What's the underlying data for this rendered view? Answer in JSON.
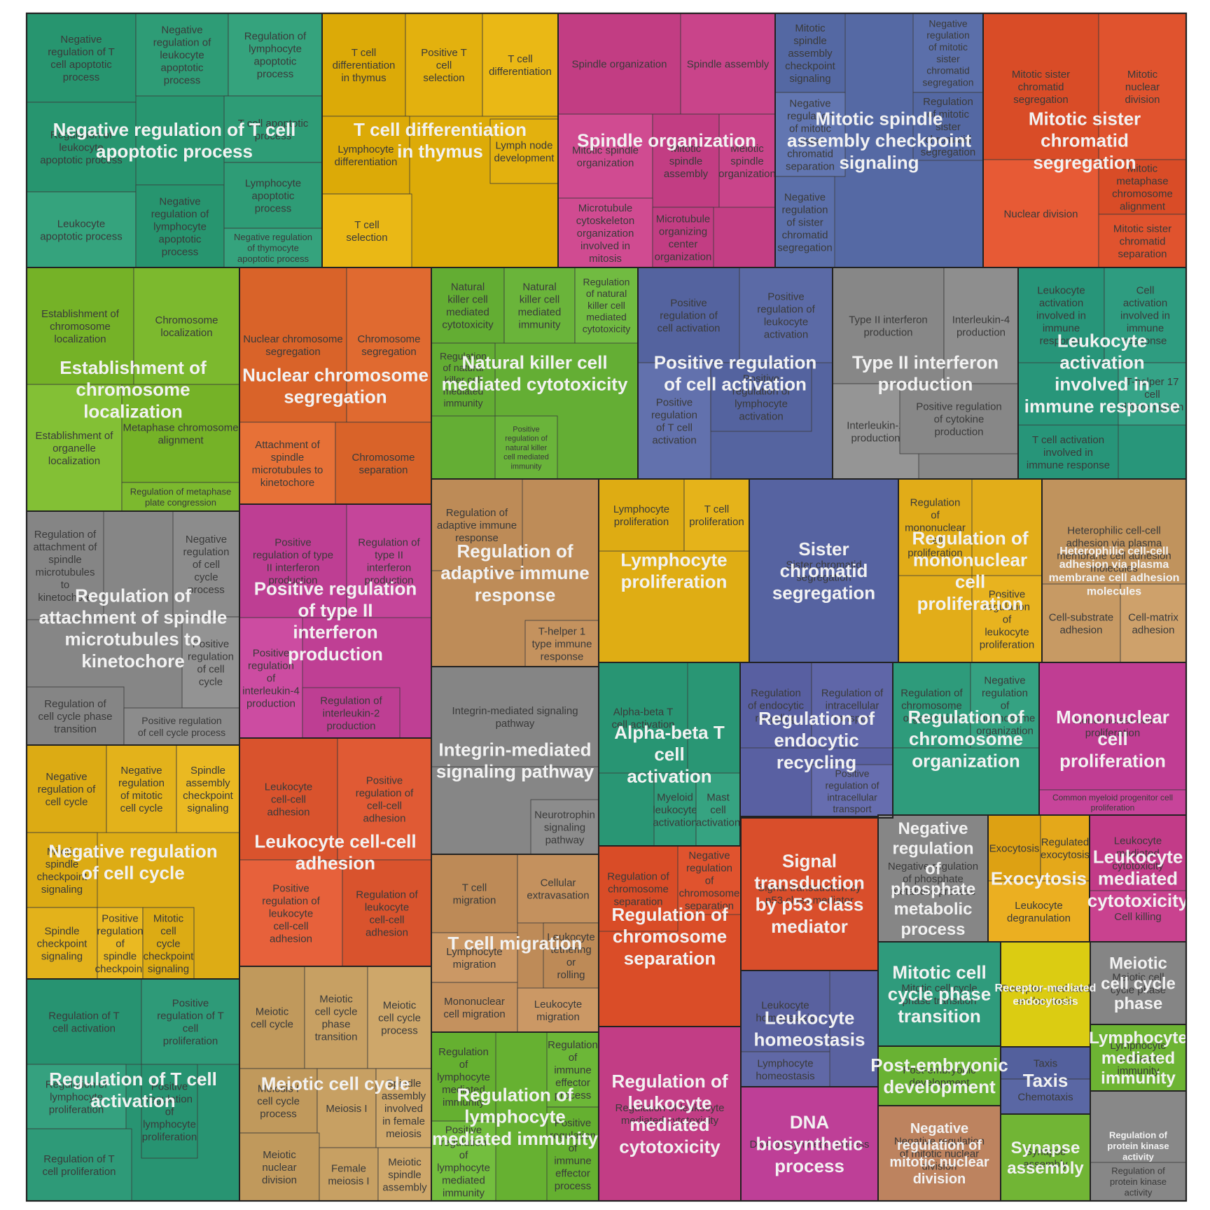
{
  "chart_data": {
    "type": "treemap",
    "title": "",
    "groups": [
      {
        "label": "Negative regulation of T cell apoptotic process",
        "color": "#2e9c76",
        "leaves": [
          {
            "label": "Negative regulation of T cell apoptotic process"
          },
          {
            "label": "Negative regulation of leukocyte apoptotic process"
          },
          {
            "label": "Regulation of lymphocyte apoptotic process"
          },
          {
            "label": "Regulation of leukocyte apoptotic process"
          },
          {
            "label": "T cell apoptotic process"
          },
          {
            "label": "Leukocyte apoptotic process"
          },
          {
            "label": "Negative regulation of lymphocyte apoptotic process"
          },
          {
            "label": "Lymphocyte apoptotic process"
          },
          {
            "label": "Negative regulation of thymocyte apoptotic process"
          }
        ]
      },
      {
        "label": "T cell differentiation in thymus",
        "color": "#e3b10e",
        "leaves": [
          {
            "label": "T cell differentiation in thymus"
          },
          {
            "label": "Positive T cell selection"
          },
          {
            "label": "T cell differentiation"
          },
          {
            "label": "Lymphocyte differentiation"
          },
          {
            "label": "Lymph node development"
          },
          {
            "label": "T cell selection"
          }
        ]
      },
      {
        "label": "Spindle organization",
        "color": "#c9448a",
        "leaves": [
          {
            "label": "Spindle organization"
          },
          {
            "label": "Spindle assembly"
          },
          {
            "label": "Mitotic spindle organization"
          },
          {
            "label": "Mitotic spindle assembly"
          },
          {
            "label": "Meiotic spindle organization"
          },
          {
            "label": "Microtubule cytoskeleton organization involved in mitosis"
          },
          {
            "label": "Microtubule organizing center organization"
          }
        ]
      },
      {
        "label": "Mitotic spindle assembly checkpoint signaling",
        "color": "#5b6faa",
        "leaves": [
          {
            "label": "Mitotic spindle assembly checkpoint signaling"
          },
          {
            "label": "Negative regulation of mitotic sister chromatid segregation"
          },
          {
            "label": "Negative regulation of mitotic sister chromatid separation"
          },
          {
            "label": "Regulation of mitotic sister chromatid segregation"
          },
          {
            "label": "Negative regulation of sister chromatid segregation"
          }
        ]
      },
      {
        "label": "Mitotic sister chromatid segregation",
        "color": "#e0532e",
        "leaves": [
          {
            "label": "Mitotic sister chromatid segregation"
          },
          {
            "label": "Mitotic nuclear division"
          },
          {
            "label": "Nuclear division"
          },
          {
            "label": "Mitotic metaphase chromosome alignment"
          },
          {
            "label": "Mitotic sister chromatid separation"
          }
        ]
      },
      {
        "label": "Establishment of chromosome localization",
        "color": "#7cb92e",
        "leaves": [
          {
            "label": "Establishment of chromosome localization"
          },
          {
            "label": "Chromosome localization"
          },
          {
            "label": "Establishment of organelle localization"
          },
          {
            "label": "Metaphase chromosome alignment"
          },
          {
            "label": "Regulation of metaphase plate congression"
          }
        ]
      },
      {
        "label": "Nuclear chromosome segregation",
        "color": "#e06a30",
        "leaves": [
          {
            "label": "Nuclear chromosome segregation"
          },
          {
            "label": "Chromosome segregation"
          },
          {
            "label": "Attachment of spindle microtubules to kinetochore"
          },
          {
            "label": "Chromosome separation"
          }
        ]
      },
      {
        "label": "Natural killer cell mediated cytotoxicity",
        "color": "#6ab43a",
        "leaves": [
          {
            "label": "Natural killer cell mediated cytotoxicity"
          },
          {
            "label": "Natural killer cell mediated immunity"
          },
          {
            "label": "Regulation of natural killer cell mediated cytotoxicity"
          },
          {
            "label": "Regulation of natural killer cell mediated immunity"
          },
          {
            "label": "Positive regulation of natural killer cell mediated immunity"
          }
        ]
      },
      {
        "label": "Positive regulation of cell activation",
        "color": "#5b6aa6",
        "leaves": [
          {
            "label": "Positive regulation of cell activation"
          },
          {
            "label": "Positive regulation of leukocyte activation"
          },
          {
            "label": "Positive regulation of T cell activation"
          },
          {
            "label": "Positive regulation of lymphocyte activation"
          }
        ]
      },
      {
        "label": "Type II interferon production",
        "color": "#8e8e8e",
        "leaves": [
          {
            "label": "Type II interferon production"
          },
          {
            "label": "Interleukin-4 production"
          },
          {
            "label": "Interleukin-2 production"
          },
          {
            "label": "Positive regulation of cytokine production"
          }
        ]
      },
      {
        "label": "Leukocyte activation involved in immune response",
        "color": "#2e9c80",
        "leaves": [
          {
            "label": "Leukocyte activation involved in immune response"
          },
          {
            "label": "Cell activation involved in immune response"
          },
          {
            "label": "T-helper 17 cell differentiation"
          },
          {
            "label": "T cell activation involved in immune response"
          }
        ]
      },
      {
        "label": "Regulation of attachment of spindle microtubules to kinetochore",
        "color": "#8c8c8c",
        "leaves": [
          {
            "label": "Regulation of attachment of spindle microtubules to kinetochore"
          },
          {
            "label": "Negative regulation of cell cycle process"
          },
          {
            "label": "Positive regulation of cell cycle"
          },
          {
            "label": "Regulation of cell cycle phase transition"
          },
          {
            "label": "Positive regulation of cell cycle process"
          }
        ]
      },
      {
        "label": "Positive regulation of type II interferon production",
        "color": "#c5459a",
        "leaves": [
          {
            "label": "Positive regulation of type II interferon production"
          },
          {
            "label": "Regulation of type II interferon production"
          },
          {
            "label": "Positive regulation of interleukin-4 production"
          },
          {
            "label": "Regulation of interleukin-2 production"
          }
        ]
      },
      {
        "label": "Regulation of adaptive immune response",
        "color": "#c4925e",
        "leaves": [
          {
            "label": "Regulation of adaptive immune response"
          },
          {
            "label": "T-helper 1 type immune response"
          }
        ]
      },
      {
        "label": "Lymphocyte proliferation",
        "color": "#e5b31a",
        "leaves": [
          {
            "label": "Lymphocyte proliferation"
          },
          {
            "label": "T cell proliferation"
          }
        ]
      },
      {
        "label": "Sister chromatid segregation",
        "color": "#5d6aa8",
        "leaves": [
          {
            "label": "Sister chromatid segregation"
          }
        ]
      },
      {
        "label": "Regulation of mononuclear cell proliferation",
        "color": "#e8b31f",
        "leaves": [
          {
            "label": "Regulation of mononuclear cell proliferation"
          },
          {
            "label": "Positive regulation of leukocyte proliferation"
          }
        ]
      },
      {
        "label": "Heterophilic cell-cell adhesion via plasma membrane cell adhesion molecules",
        "color": "#c79a64",
        "leaves": [
          {
            "label": "Heterophilic cell-cell adhesion via plasma membrane cell adhesion molecules"
          },
          {
            "label": "Cell-substrate adhesion"
          },
          {
            "label": "Cell-matrix adhesion"
          }
        ]
      },
      {
        "label": "Integrin-mediated signaling pathway",
        "color": "#8c8c8c",
        "leaves": [
          {
            "label": "Integrin-mediated signaling pathway"
          },
          {
            "label": "Neurotrophin signaling pathway"
          }
        ]
      },
      {
        "label": "Alpha-beta T cell activation",
        "color": "#2f9c7a",
        "leaves": [
          {
            "label": "Alpha-beta T cell activation"
          },
          {
            "label": "Myeloid leukocyte activation"
          },
          {
            "label": "Mast cell activation"
          }
        ]
      },
      {
        "label": "Regulation of endocytic recycling",
        "color": "#5f66a8",
        "leaves": [
          {
            "label": "Regulation of endocytic recycling"
          },
          {
            "label": "Regulation of intracellular transport"
          },
          {
            "label": "Positive regulation of intracellular transport"
          }
        ]
      },
      {
        "label": "Regulation of chromosome organization",
        "color": "#35a282",
        "leaves": [
          {
            "label": "Regulation of chromosome organization"
          },
          {
            "label": "Negative regulation of chromosome organization"
          }
        ]
      },
      {
        "label": "Mononuclear cell proliferation",
        "color": "#c7449a",
        "leaves": [
          {
            "label": "Mononuclear cell proliferation"
          },
          {
            "label": "Common myeloid progenitor cell proliferation"
          }
        ]
      },
      {
        "label": "Negative regulation of cell cycle",
        "color": "#e3b21b",
        "leaves": [
          {
            "label": "Negative regulation of cell cycle"
          },
          {
            "label": "Negative regulation of mitotic cell cycle"
          },
          {
            "label": "Spindle assembly checkpoint signaling"
          },
          {
            "label": "Mitotic spindle checkpoint signaling"
          },
          {
            "label": "Spindle checkpoint signaling"
          },
          {
            "label": "Positive regulation of spindle checkpoint"
          },
          {
            "label": "Mitotic cell cycle checkpoint signaling"
          }
        ]
      },
      {
        "label": "Leukocyte cell-cell adhesion",
        "color": "#e05a34",
        "leaves": [
          {
            "label": "Leukocyte cell-cell adhesion"
          },
          {
            "label": "Positive regulation of cell-cell adhesion"
          },
          {
            "label": "Positive regulation of leukocyte cell-cell adhesion"
          },
          {
            "label": "Regulation of leukocyte cell-cell adhesion"
          }
        ]
      },
      {
        "label": "T cell migration",
        "color": "#c4915e",
        "leaves": [
          {
            "label": "T cell migration"
          },
          {
            "label": "Cellular extravasation"
          },
          {
            "label": "Lymphocyte migration"
          },
          {
            "label": "Leukocyte tethering or rolling"
          },
          {
            "label": "Mononuclear cell migration"
          },
          {
            "label": "Leukocyte migration"
          }
        ]
      },
      {
        "label": "Regulation of chromosome separation",
        "color": "#e0532e",
        "leaves": [
          {
            "label": "Regulation of chromosome separation"
          },
          {
            "label": "Negative regulation of chromosome separation"
          }
        ]
      },
      {
        "label": "Signal transduction by p53 class mediator",
        "color": "#e05532",
        "leaves": [
          {
            "label": "Signal transduction by p53 class mediator"
          }
        ]
      },
      {
        "label": "Negative regulation of phosphate metabolic process",
        "color": "#8d8d8d",
        "leaves": [
          {
            "label": "Negative regulation of phosphate metabolic process"
          }
        ]
      },
      {
        "label": "Exocytosis",
        "color": "#e4a81a",
        "leaves": [
          {
            "label": "Exocytosis"
          },
          {
            "label": "Regulated exocytosis"
          },
          {
            "label": "Leukocyte degranulation"
          }
        ]
      },
      {
        "label": "Leukocyte mediated cytotoxicity",
        "color": "#c9428f",
        "leaves": [
          {
            "label": "Leukocyte mediated cytotoxicity"
          },
          {
            "label": "Cell killing"
          }
        ]
      },
      {
        "label": "Regulation of T cell activation",
        "color": "#2e9a78",
        "leaves": [
          {
            "label": "Regulation of T cell activation"
          },
          {
            "label": "Positive regulation of T cell proliferation"
          },
          {
            "label": "Regulation of lymphocyte proliferation"
          },
          {
            "label": "Positive regulation of lymphocyte proliferation"
          },
          {
            "label": "Regulation of T cell proliferation"
          }
        ]
      },
      {
        "label": "Meiotic cell cycle",
        "color": "#c7a063",
        "leaves": [
          {
            "label": "Meiotic cell cycle"
          },
          {
            "label": "Meiotic cell cycle phase transition"
          },
          {
            "label": "Meiotic cell cycle process"
          },
          {
            "label": "Meiosis I cell cycle process"
          },
          {
            "label": "Meiosis I"
          },
          {
            "label": "Spindle assembly involved in female meiosis"
          },
          {
            "label": "Meiotic nuclear division"
          },
          {
            "label": "Female meiosis I"
          },
          {
            "label": "Meiotic spindle assembly"
          }
        ]
      },
      {
        "label": "Regulation of lymphocyte mediated immunity",
        "color": "#6cb737",
        "leaves": [
          {
            "label": "Regulation of lymphocyte mediated immunity"
          },
          {
            "label": "Regulation of immune effector process"
          },
          {
            "label": "Positive regulation of lymphocyte mediated immunity"
          },
          {
            "label": "Positive regulation of immune effector process"
          }
        ]
      },
      {
        "label": "Regulation of leukocyte mediated cytotoxicity",
        "color": "#c9448c",
        "leaves": [
          {
            "label": "Regulation of leukocyte mediated cytotoxicity"
          }
        ]
      },
      {
        "label": "Leukocyte homeostasis",
        "color": "#6068a6",
        "leaves": [
          {
            "label": "Leukocyte homeostasis"
          },
          {
            "label": "Lymphocyte homeostasis"
          }
        ]
      },
      {
        "label": "DNA biosynthetic process",
        "color": "#c5469e",
        "leaves": [
          {
            "label": "DNA biosynthetic process"
          }
        ]
      },
      {
        "label": "Mitotic cell cycle phase transition",
        "color": "#36a283",
        "leaves": [
          {
            "label": "Mitotic cell cycle phase transition"
          }
        ]
      },
      {
        "label": "Post-embryonic development",
        "color": "#70b93a",
        "leaves": [
          {
            "label": "Post-embryonic development"
          }
        ]
      },
      {
        "label": "Negative regulation of mitotic nuclear division",
        "color": "#c48a66",
        "leaves": [
          {
            "label": "Negative regulation of mitotic nuclear division"
          }
        ]
      },
      {
        "label": "Receptor-mediated endocytosis",
        "color": "#e2d319",
        "leaves": [
          {
            "label": "Receptor-mediated endocytosis"
          }
        ]
      },
      {
        "label": "Meiotic cell cycle phase",
        "color": "#8c8c8c",
        "leaves": [
          {
            "label": "Meiotic cell cycle phase"
          }
        ]
      },
      {
        "label": "Taxis",
        "color": "#5a67a4",
        "leaves": [
          {
            "label": "Taxis"
          },
          {
            "label": "Chemotaxis"
          }
        ]
      },
      {
        "label": "Lymphocyte mediated immunity",
        "color": "#74bb3a",
        "leaves": [
          {
            "label": "Lymphocyte mediated immunity"
          }
        ]
      },
      {
        "label": "Synapse assembly",
        "color": "#78bc3c",
        "leaves": [
          {
            "label": "Synapse assembly"
          }
        ]
      },
      {
        "label": "Regulation of protein kinase activity",
        "color": "#8e8e8e",
        "leaves": [
          {
            "label": "Regulation of protein kinase activity"
          }
        ]
      }
    ]
  }
}
